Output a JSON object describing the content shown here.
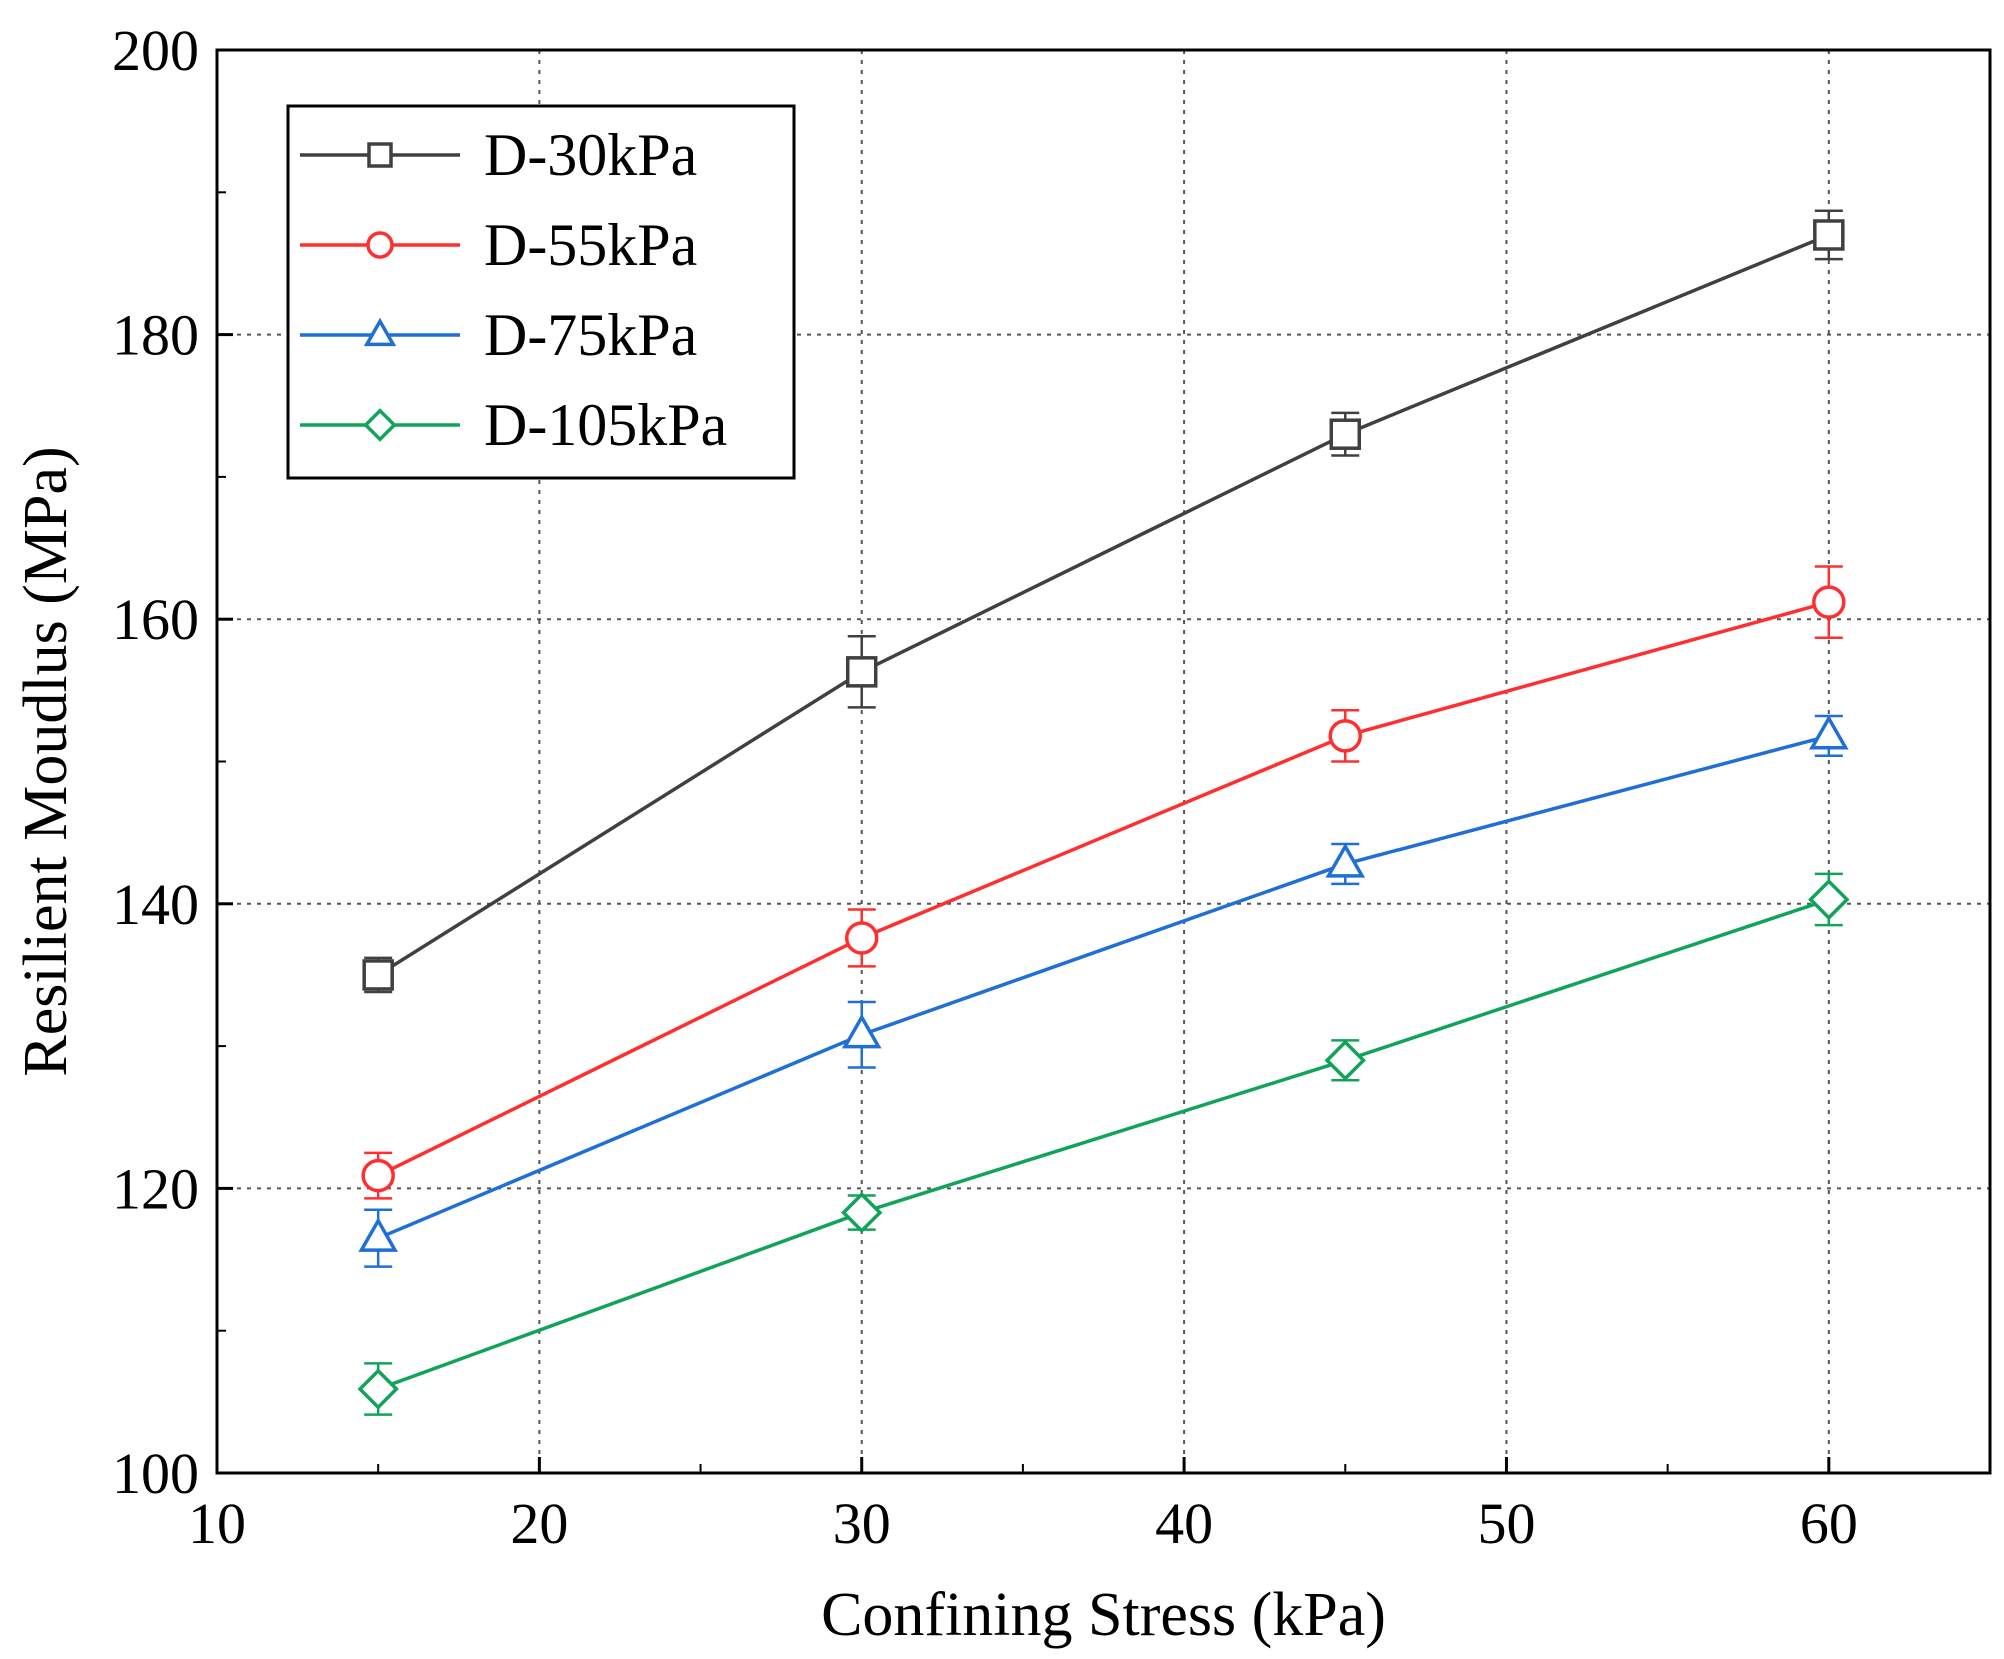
{
  "chart_data": {
    "type": "line",
    "title": "",
    "xlabel": "Confining Stress (kPa)",
    "ylabel": "Resilient Moudlus (MPa)",
    "xlim": [
      10,
      65
    ],
    "ylim": [
      100,
      200
    ],
    "xticks": [
      10,
      20,
      30,
      40,
      50,
      60
    ],
    "yticks": [
      100,
      120,
      140,
      160,
      180,
      200
    ],
    "grid": true,
    "legend_position": "top-left",
    "x": [
      15,
      30,
      45,
      60
    ],
    "series": [
      {
        "name": "D-30kPa",
        "color": "#404040",
        "marker": "square",
        "values": [
          135.0,
          156.3,
          173.0,
          187.0
        ],
        "errors": [
          1.2,
          2.5,
          1.5,
          1.7
        ]
      },
      {
        "name": "D-55kPa",
        "color": "#ff2f2f",
        "marker": "circle",
        "values": [
          120.9,
          137.6,
          151.8,
          161.2
        ],
        "errors": [
          1.6,
          2.0,
          1.8,
          2.5
        ]
      },
      {
        "name": "D-75kPa",
        "color": "#1f6fd6",
        "marker": "triangle",
        "values": [
          116.5,
          130.8,
          142.8,
          151.8
        ],
        "errors": [
          2.0,
          2.3,
          1.4,
          1.4
        ]
      },
      {
        "name": "D-105kPa",
        "color": "#12a35a",
        "marker": "diamond",
        "values": [
          105.9,
          118.3,
          129.0,
          140.3
        ],
        "errors": [
          1.8,
          1.2,
          1.4,
          1.8
        ]
      }
    ]
  }
}
